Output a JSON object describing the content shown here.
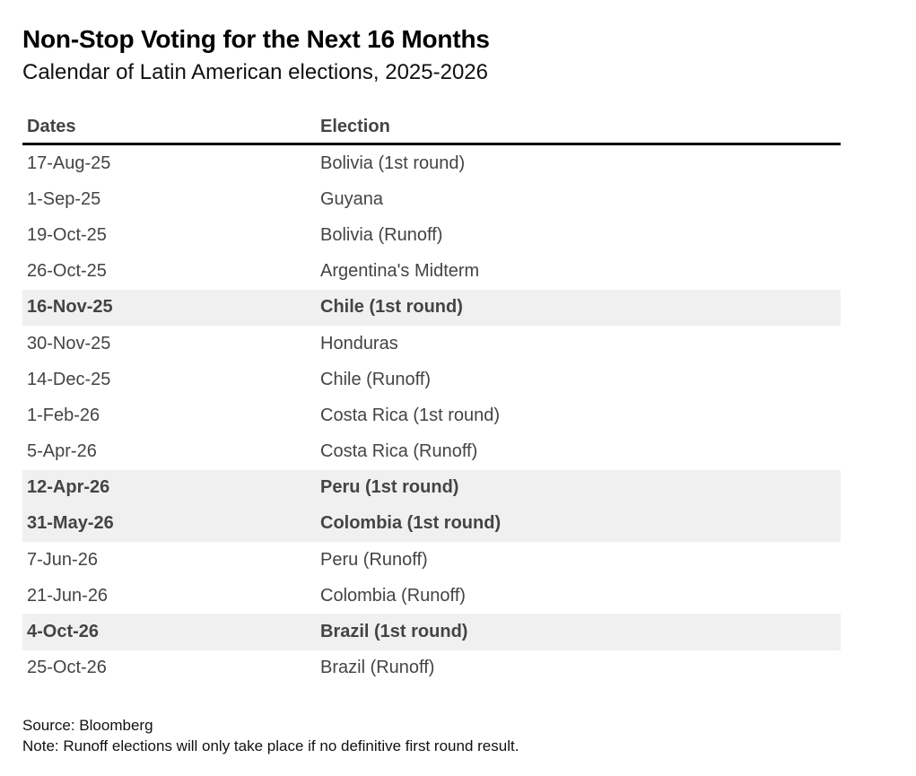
{
  "chart_data": {
    "type": "table",
    "title": "Non-Stop Voting for the Next 16 Months",
    "subtitle": "Calendar of Latin American elections, 2025-2026",
    "columns": [
      "Dates",
      "Election"
    ],
    "rows": [
      {
        "date": "17-Aug-25",
        "election": "Bolivia (1st round)",
        "highlight": false
      },
      {
        "date": "1-Sep-25",
        "election": "Guyana",
        "highlight": false
      },
      {
        "date": "19-Oct-25",
        "election": "Bolivia (Runoff)",
        "highlight": false
      },
      {
        "date": "26-Oct-25",
        "election": "Argentina's Midterm",
        "highlight": false
      },
      {
        "date": "16-Nov-25",
        "election": "Chile (1st round)",
        "highlight": true
      },
      {
        "date": "30-Nov-25",
        "election": "Honduras",
        "highlight": false
      },
      {
        "date": "14-Dec-25",
        "election": "Chile (Runoff)",
        "highlight": false
      },
      {
        "date": "1-Feb-26",
        "election": "Costa Rica (1st round)",
        "highlight": false
      },
      {
        "date": "5-Apr-26",
        "election": "Costa Rica (Runoff)",
        "highlight": false
      },
      {
        "date": "12-Apr-26",
        "election": "Peru (1st round)",
        "highlight": true
      },
      {
        "date": "31-May-26",
        "election": "Colombia (1st round)",
        "highlight": true
      },
      {
        "date": "7-Jun-26",
        "election": "Peru (Runoff)",
        "highlight": false
      },
      {
        "date": "21-Jun-26",
        "election": "Colombia (Runoff)",
        "highlight": false
      },
      {
        "date": "4-Oct-26",
        "election": "Brazil (1st round)",
        "highlight": true
      },
      {
        "date": "25-Oct-26",
        "election": "Brazil (Runoff)",
        "highlight": false
      }
    ],
    "source": "Source: Bloomberg",
    "note": "Note: Runoff elections will only take place if no definitive first round result.",
    "colors": {
      "highlight_row": "#f0f0f0",
      "header_rule": "#000000",
      "text": "#444444"
    }
  }
}
